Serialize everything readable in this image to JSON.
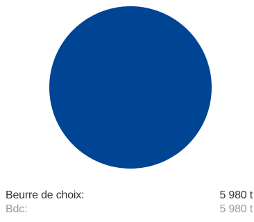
{
  "chart_data": {
    "type": "pie",
    "title": "",
    "series": [
      {
        "name": "Beurre de choix",
        "values": [
          5980
        ],
        "unit": "t",
        "color": "#004494"
      }
    ]
  },
  "legend": {
    "rows": [
      {
        "label": "Beurre de choix:",
        "value": "5 980 t"
      },
      {
        "label": "Bdc:",
        "value": "5 980 t"
      }
    ]
  },
  "colors": {
    "slice": "#004494",
    "primary_text": "#333333",
    "secondary_text": "#9a9a9a"
  }
}
